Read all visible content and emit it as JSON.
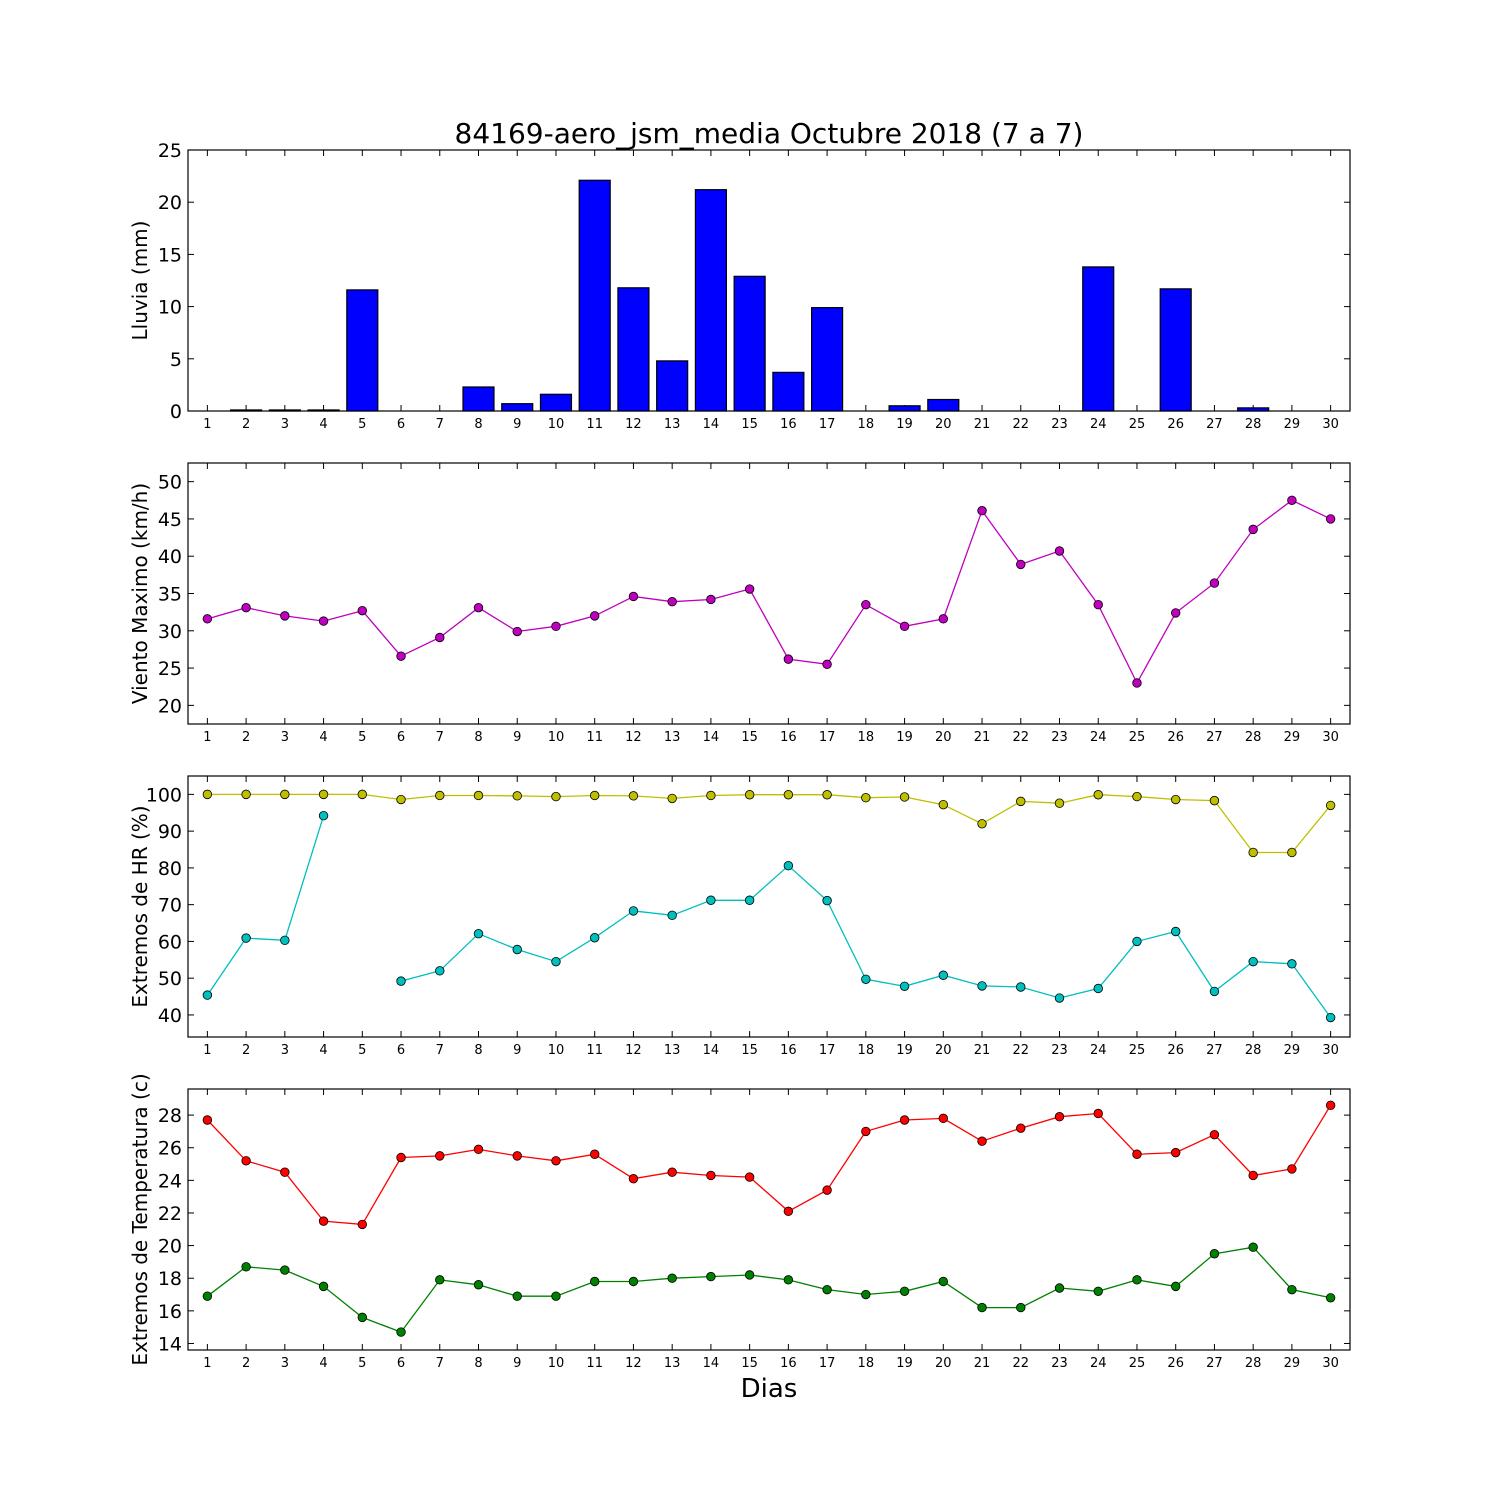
{
  "figure": {
    "title": "84169-aero_jsm_media Octubre 2018  (7 a 7)",
    "xlabel": "Dias"
  },
  "chart_data": [
    {
      "type": "bar",
      "ylabel": "Lluvia (mm)",
      "ylim": [
        0,
        25
      ],
      "yticks": [
        0,
        5,
        10,
        15,
        20,
        25
      ],
      "x": [
        1,
        2,
        3,
        4,
        5,
        6,
        7,
        8,
        9,
        10,
        11,
        12,
        13,
        14,
        15,
        16,
        17,
        18,
        19,
        20,
        21,
        22,
        23,
        24,
        25,
        26,
        27,
        28,
        29,
        30
      ],
      "values": [
        0,
        0.1,
        0.1,
        0.1,
        11.6,
        0,
        0,
        2.3,
        0.7,
        1.6,
        22.1,
        11.8,
        4.8,
        21.2,
        12.9,
        3.7,
        9.9,
        0,
        0.5,
        1.1,
        0,
        0,
        0,
        13.8,
        0,
        11.7,
        0,
        0.3,
        0,
        0
      ],
      "color": "#0000ff"
    },
    {
      "type": "line",
      "ylabel": "Viento Maximo (km/h)",
      "ylim": [
        17.5,
        52.5
      ],
      "yticks": [
        20,
        25,
        30,
        35,
        40,
        45,
        50
      ],
      "x": [
        1,
        2,
        3,
        4,
        5,
        6,
        7,
        8,
        9,
        10,
        11,
        12,
        13,
        14,
        15,
        16,
        17,
        18,
        19,
        20,
        21,
        22,
        23,
        24,
        25,
        26,
        27,
        28,
        29,
        30
      ],
      "series": [
        {
          "color": "#bf00bf",
          "values": [
            31.6,
            33.1,
            32.0,
            31.3,
            32.7,
            26.6,
            29.1,
            33.1,
            29.9,
            30.6,
            32.0,
            34.6,
            33.9,
            34.2,
            35.6,
            26.2,
            25.5,
            33.5,
            30.6,
            31.6,
            46.1,
            38.9,
            40.7,
            33.5,
            23.0,
            32.4,
            36.4,
            43.6,
            47.5,
            45.0
          ]
        }
      ]
    },
    {
      "type": "line",
      "ylabel": "Extremos de HR (%)",
      "ylim": [
        34,
        105
      ],
      "yticks": [
        40,
        50,
        60,
        70,
        80,
        90,
        100
      ],
      "x": [
        1,
        2,
        3,
        4,
        5,
        6,
        7,
        8,
        9,
        10,
        11,
        12,
        13,
        14,
        15,
        16,
        17,
        18,
        19,
        20,
        21,
        22,
        23,
        24,
        25,
        26,
        27,
        28,
        29,
        30
      ],
      "series": [
        {
          "color": "#bfbf00",
          "values": [
            100,
            100,
            100,
            100,
            100,
            98.6,
            99.7,
            99.7,
            99.6,
            99.4,
            99.7,
            99.6,
            98.9,
            99.7,
            99.9,
            99.9,
            99.9,
            99.1,
            99.3,
            97.2,
            92.0,
            98.1,
            97.6,
            99.9,
            99.4,
            98.6,
            98.3,
            84.2,
            84.2,
            97.0
          ]
        },
        {
          "color": "#00bfbf",
          "values": [
            45.4,
            60.9,
            60.3,
            94.2,
            null,
            49.2,
            52.0,
            62.1,
            57.8,
            54.5,
            61.0,
            68.3,
            67.1,
            71.2,
            71.2,
            80.6,
            71.1,
            49.7,
            47.8,
            50.8,
            47.9,
            47.6,
            44.6,
            47.2,
            60.0,
            62.7,
            46.4,
            54.5,
            53.9,
            39.3
          ]
        }
      ]
    },
    {
      "type": "line",
      "ylabel": "Extremos de Temperatura (c)",
      "ylim": [
        13.6,
        29.6
      ],
      "yticks": [
        14,
        16,
        18,
        20,
        22,
        24,
        26,
        28
      ],
      "x": [
        1,
        2,
        3,
        4,
        5,
        6,
        7,
        8,
        9,
        10,
        11,
        12,
        13,
        14,
        15,
        16,
        17,
        18,
        19,
        20,
        21,
        22,
        23,
        24,
        25,
        26,
        27,
        28,
        29,
        30
      ],
      "series": [
        {
          "color": "#ff0000",
          "values": [
            27.7,
            25.2,
            24.5,
            21.5,
            21.3,
            25.4,
            25.5,
            25.9,
            25.5,
            25.2,
            25.6,
            24.1,
            24.5,
            24.3,
            24.2,
            22.1,
            23.4,
            27.0,
            27.7,
            27.8,
            26.4,
            27.2,
            27.9,
            28.1,
            25.6,
            25.7,
            26.8,
            24.3,
            24.7,
            28.6
          ]
        },
        {
          "color": "#008000",
          "values": [
            16.9,
            18.7,
            18.5,
            17.5,
            15.6,
            14.7,
            17.9,
            17.6,
            16.9,
            16.9,
            17.8,
            17.8,
            18.0,
            18.1,
            18.2,
            17.9,
            17.3,
            17.0,
            17.2,
            17.8,
            16.2,
            16.2,
            17.4,
            17.2,
            17.9,
            17.5,
            19.5,
            19.9,
            17.3,
            16.8
          ]
        }
      ]
    }
  ]
}
